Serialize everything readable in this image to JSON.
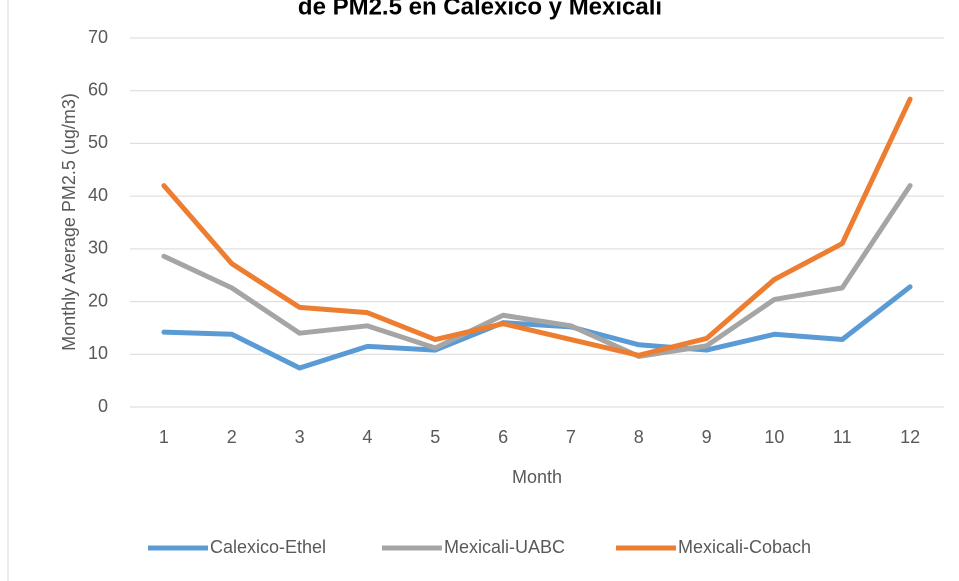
{
  "chart_data": {
    "type": "line",
    "title": "de PM2.5 en Calexico y Mexicali",
    "x_label": "Month",
    "y_label": "Monthly Average PM2.5 (ug/m3)",
    "categories": [
      "1",
      "2",
      "3",
      "4",
      "5",
      "6",
      "7",
      "8",
      "9",
      "10",
      "11",
      "12"
    ],
    "series": [
      {
        "name": "Calexico-Ethel",
        "color": "#5b9bd5",
        "values": [
          14.2,
          13.8,
          7.4,
          11.5,
          10.8,
          16,
          15.2,
          11.8,
          10.8,
          13.8,
          12.8,
          22.8
        ]
      },
      {
        "name": "Mexicali-UABC",
        "color": "#a5a5a5",
        "values": [
          28.6,
          22.6,
          14,
          15.4,
          11.2,
          17.4,
          15.4,
          9.6,
          11.6,
          20.4,
          22.6,
          42
        ]
      },
      {
        "name": "Mexicali-Cobach",
        "color": "#ed7d31",
        "values": [
          42,
          27.2,
          18.9,
          17.9,
          12.8,
          15.8,
          12.8,
          9.8,
          13,
          24.2,
          31,
          58.4
        ]
      }
    ],
    "ylim": [
      0,
      70
    ],
    "yticks": [
      0,
      10,
      20,
      30,
      40,
      50,
      60,
      70
    ],
    "grid": true,
    "legend": "bottom"
  }
}
